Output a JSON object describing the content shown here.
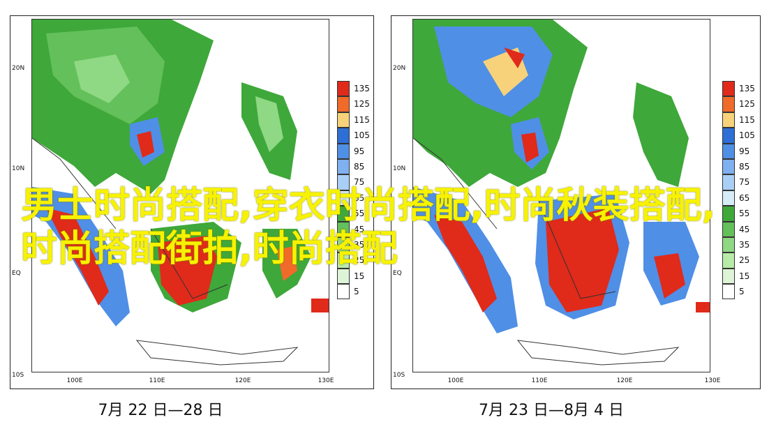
{
  "panels": [
    {
      "caption": "7月 22 日—28 日",
      "lat_labels": [
        "20N",
        "10N",
        "EQ",
        "10S"
      ],
      "lon_labels": [
        "100E",
        "110E",
        "120E",
        "130E"
      ]
    },
    {
      "caption": "7月 23 日—8月 4 日",
      "lat_labels": [
        "20N",
        "10N",
        "EQ",
        "10S"
      ],
      "lon_labels": [
        "100E",
        "110E",
        "120E",
        "130E"
      ]
    }
  ],
  "legend": [
    {
      "label": "135",
      "color": "#e02a1a"
    },
    {
      "label": "125",
      "color": "#f06a2a"
    },
    {
      "label": "115",
      "color": "#f7d27a"
    },
    {
      "label": "105",
      "color": "#2d6fd6"
    },
    {
      "label": "95",
      "color": "#4f8fe6"
    },
    {
      "label": "85",
      "color": "#7fb0f0"
    },
    {
      "label": "75",
      "color": "#aacff7"
    },
    {
      "label": "65",
      "color": "#d6edf7"
    },
    {
      "label": "55",
      "color": "#3ea83a"
    },
    {
      "label": "45",
      "color": "#63c05a"
    },
    {
      "label": "35",
      "color": "#8fd884"
    },
    {
      "label": "25",
      "color": "#b8eaa8"
    },
    {
      "label": "15",
      "color": "#ddf5d6"
    },
    {
      "label": "5",
      "color": "#ffffff"
    }
  ],
  "overlay_text": "男士时尚搭配,穿衣时尚搭配,时尚秋装搭配,时尚搭配街拍,时尚搭配"
}
